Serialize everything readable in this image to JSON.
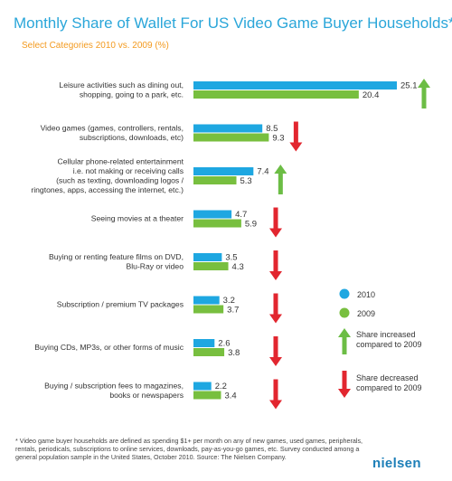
{
  "title": "Monthly Share of Wallet For US Video Game Buyer Households*",
  "subtitle": "Select Categories 2010 vs. 2009 (%)",
  "colors": {
    "s2010": "#1ea7e1",
    "s2009": "#78bf3f",
    "up": "#6cbd45",
    "down": "#e2262f"
  },
  "chart_data": {
    "type": "bar",
    "orientation": "horizontal",
    "categories": [
      [
        "Leisure activities such as dining out,",
        "shopping, going to a park, etc."
      ],
      [
        "Video games (games, controllers, rentals,",
        "subscriptions, downloads, etc)"
      ],
      [
        "Cellular phone-related entertainment",
        "i.e. not making or receiving calls",
        "(such as texting, downloading logos /",
        "ringtones, apps, accessing the internet, etc.)"
      ],
      [
        "Seeing movies at a theater"
      ],
      [
        "Buying or renting feature films on DVD,",
        "Blu-Ray or video"
      ],
      [
        "Subscription / premium TV packages"
      ],
      [
        "Buying CDs, MP3s, or other forms of music"
      ],
      [
        "Buying / subscription fees to magazines,",
        "books or newspapers"
      ]
    ],
    "series": [
      {
        "name": "2010",
        "values": [
          25.1,
          8.5,
          7.4,
          4.7,
          3.5,
          3.2,
          2.6,
          2.2
        ]
      },
      {
        "name": "2009",
        "values": [
          20.4,
          9.3,
          5.3,
          5.9,
          4.3,
          3.7,
          3.8,
          3.4
        ]
      }
    ],
    "trend": [
      "up",
      "down",
      "up",
      "down",
      "down",
      "down",
      "down",
      "down"
    ],
    "legend": {
      "s2010": "2010",
      "s2009": "2009",
      "up": [
        "Share increased",
        "compared to 2009"
      ],
      "down": [
        "Share decreased",
        "compared to 2009"
      ]
    },
    "xlim": [
      0,
      25.1
    ],
    "grid": false
  },
  "footnote": "* Video game buyer households are defined as spending $1+ per month on any of new games, used games, peripherals, rentals, periodicals, subscriptions to online services, downloads, pay-as-you-go games, etc. Survey conducted among a general population sample in the United States, October 2010. Source: The Nielsen Company.",
  "brand": "nielsen"
}
